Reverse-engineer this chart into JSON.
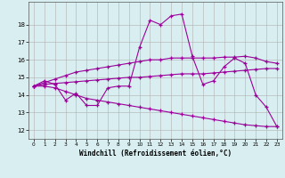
{
  "background_color": "#d8eef0",
  "line_color": "#9b009b",
  "grid_color": "#b0b0b0",
  "xlabel": "Windchill (Refroidissement éolien,°C)",
  "ylabel_ticks": [
    12,
    13,
    14,
    15,
    16,
    17,
    18
  ],
  "xlim": [
    -0.5,
    23.5
  ],
  "ylim": [
    11.5,
    19.3
  ],
  "x_ticks": [
    0,
    1,
    2,
    3,
    4,
    5,
    6,
    7,
    8,
    9,
    10,
    11,
    12,
    13,
    14,
    15,
    16,
    17,
    18,
    19,
    20,
    21,
    22,
    23
  ],
  "series": [
    {
      "x": [
        0,
        1,
        2,
        3,
        4,
        5,
        6,
        7,
        8,
        9,
        10,
        11,
        12,
        13,
        14,
        15,
        16,
        17,
        18,
        19,
        20,
        21,
        22,
        23
      ],
      "y": [
        14.5,
        14.5,
        14.4,
        14.2,
        14.0,
        13.8,
        13.7,
        13.6,
        13.5,
        13.4,
        13.3,
        13.2,
        13.1,
        13.0,
        12.9,
        12.8,
        12.7,
        12.6,
        12.5,
        12.4,
        12.3,
        12.25,
        12.2,
        12.2
      ]
    },
    {
      "x": [
        0,
        1,
        2,
        3,
        4,
        5,
        6,
        7,
        8,
        9,
        10,
        11,
        12,
        13,
        14,
        15,
        16,
        17,
        18,
        19,
        20,
        21,
        22,
        23
      ],
      "y": [
        14.5,
        14.6,
        14.65,
        14.7,
        14.75,
        14.8,
        14.85,
        14.9,
        14.95,
        15.0,
        15.0,
        15.05,
        15.1,
        15.15,
        15.2,
        15.2,
        15.2,
        15.25,
        15.3,
        15.35,
        15.4,
        15.45,
        15.5,
        15.5
      ]
    },
    {
      "x": [
        0,
        1,
        2,
        3,
        4,
        5,
        6,
        7,
        8,
        9,
        10,
        11,
        12,
        13,
        14,
        15,
        16,
        17,
        18,
        19,
        20,
        21,
        22,
        23
      ],
      "y": [
        14.5,
        14.7,
        14.9,
        15.1,
        15.3,
        15.4,
        15.5,
        15.6,
        15.7,
        15.8,
        15.9,
        16.0,
        16.0,
        16.1,
        16.1,
        16.1,
        16.1,
        16.1,
        16.15,
        16.15,
        16.2,
        16.1,
        15.9,
        15.8
      ]
    },
    {
      "x": [
        0,
        1,
        2,
        3,
        4,
        5,
        6,
        7,
        8,
        9,
        10,
        11,
        12,
        13,
        14,
        15,
        16,
        17,
        18,
        19,
        20,
        21,
        22,
        23
      ],
      "y": [
        14.5,
        14.8,
        14.6,
        13.7,
        14.1,
        13.4,
        13.4,
        14.4,
        14.5,
        14.5,
        16.7,
        18.25,
        18.0,
        18.5,
        18.6,
        16.2,
        14.6,
        14.8,
        15.6,
        16.1,
        15.8,
        14.0,
        13.3,
        12.2
      ]
    }
  ]
}
